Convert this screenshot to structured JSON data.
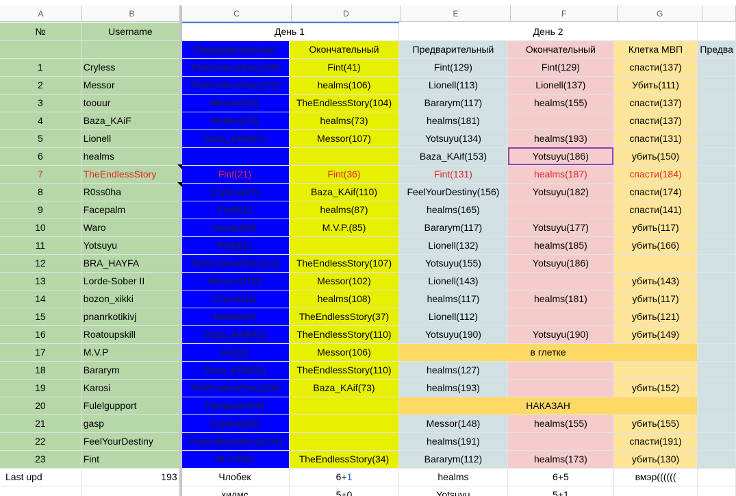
{
  "columns": [
    "A",
    "B",
    "C",
    "D",
    "E",
    "F",
    "G"
  ],
  "headers": {
    "num": "№",
    "username": "Username",
    "day1": "День 1",
    "day2": "День 2",
    "prelim": "Предварительный",
    "final": "Окончательный",
    "mvp": "Клетка МВП",
    "next": "Предва"
  },
  "rows": [
    {
      "n": "1",
      "name": "Cryless",
      "c": "TheEndlessStory(30)",
      "d": "Fint(41)",
      "e": "Fint(129)",
      "f": "Fint(129)",
      "g": "спасти(137)"
    },
    {
      "n": "2",
      "name": "Messor",
      "c": "TheEndlessStory(22)",
      "d": "healms(106)",
      "e": "Lionell(113)",
      "f": "Lionell(137)",
      "g": "Убить(111)"
    },
    {
      "n": "3",
      "name": "toouur",
      "c": "Messor(10)",
      "d": "TheEndlessStory(104)",
      "e": "Bararym(117)",
      "f": "healms(155)",
      "g": "спасти(137)"
    },
    {
      "n": "4",
      "name": "Baza_KAiF",
      "c": "healms(73)",
      "d": "healms(73)",
      "e": "healms(181)",
      "f": "",
      "g": "спасти(137)"
    },
    {
      "n": "5",
      "name": "Lionell",
      "c": "Baza_KAif(87)",
      "d": "Messor(107)",
      "e": "Yotsuyu(134)",
      "f": "healms(193)",
      "g": "спасти(131)"
    },
    {
      "n": "6",
      "name": "healms",
      "c": "",
      "d": "",
      "e": "Baza_KAif(153)",
      "f": "Yotsuyu(186)",
      "g": "убить(150)"
    },
    {
      "n": "7",
      "name": "TheEndlessStory",
      "c": "Fint(21)",
      "d": "Fint(36)",
      "e": "Fint(131)",
      "f": "healms(187)",
      "g": "спасти(184)"
    },
    {
      "n": "8",
      "name": "R0ss0ha",
      "c": "Cryless(97)",
      "d": "Baza_KAif(110)",
      "e": "FeelYourDestiny(156)",
      "f": "Yotsuyu(182)",
      "g": "спасти(174)"
    },
    {
      "n": "9",
      "name": "Facepalm",
      "c": "Fint(61)",
      "d": "healms(87)",
      "e": "healms(165)",
      "f": "",
      "g": "спасти(141)"
    },
    {
      "n": "10",
      "name": "Waro",
      "c": "toouur(50)",
      "d": "M.V.P.(85)",
      "e": "Bararym(117)",
      "f": "Yotsuyu(177)",
      "g": "убить(117)"
    },
    {
      "n": "11",
      "name": "Yotsuyu",
      "c": "Fint(81)",
      "d": "",
      "e": "Lionell(132)",
      "f": "healms(185)",
      "g": "убить(166)"
    },
    {
      "n": "12",
      "name": "BRA_HAYFA",
      "c": "TheEndlessStory(22)",
      "d": "TheEndlessStory(107)",
      "e": "Yotsuyu(155)",
      "f": "Yotsuyu(186)",
      "g": ""
    },
    {
      "n": "13",
      "name": "Lorde-Sober II",
      "c": "Messor(102)",
      "d": "Messor(102)",
      "e": "Lionell(143)",
      "f": "",
      "g": "убить(143)"
    },
    {
      "n": "14",
      "name": "bozon_xikki",
      "c": "Cryless(4)",
      "d": "healms(108)",
      "e": "healms(117)",
      "f": "healms(181)",
      "g": "убить(117)"
    },
    {
      "n": "15",
      "name": "pnanrkotikivj",
      "c": "Messor(3)",
      "d": "TheEndlessStory(37)",
      "e": "Lionell(112)",
      "f": "",
      "g": "убить(121)"
    },
    {
      "n": "16",
      "name": "Roatoupskill",
      "c": "Baza_KAif(43)",
      "d": "TheEndlessStory(110)",
      "e": "Yotsuyu(190)",
      "f": "Yotsuyu(190)",
      "g": "убить(149)"
    },
    {
      "n": "17",
      "name": "M.V.P",
      "c": "Fint(2)",
      "d": "Messor(106)",
      "merged": "в глетке"
    },
    {
      "n": "18",
      "name": "Bararym",
      "c": "Baza_KAif(69)",
      "d": "TheEndlessStory(110)",
      "e": "healms(127)",
      "f": "",
      "g": ""
    },
    {
      "n": "19",
      "name": "Karosi",
      "c": "TheEndlessStory(24)",
      "d": "Baza_KAif(73)",
      "e": "healms(193)",
      "f": "",
      "g": "убить(152)"
    },
    {
      "n": "20",
      "name": "Fulelgupport",
      "c": "Facepalm(64)",
      "d": "",
      "merged": "НАКАЗАН"
    },
    {
      "n": "21",
      "name": "gasp",
      "c": "Cryless(64)",
      "d": "",
      "e": "Messor(148)",
      "f": "healms(155)",
      "g": "убить(155)"
    },
    {
      "n": "22",
      "name": "FeelYourDestiny",
      "c": "TheEndlessStory(104)",
      "d": "",
      "e": "healms(191)",
      "f": "",
      "g": "спасти(191)"
    },
    {
      "n": "23",
      "name": "Fint",
      "c": "M.V.P(2)",
      "d": "TheEndlessStory(34)",
      "e": "Bararym(112)",
      "f": "healms(173)",
      "g": "убить(130)"
    }
  ],
  "footer": {
    "last_upd_label": "Last upd",
    "last_upd_value": "193",
    "r1": {
      "c": "Члобек",
      "d_a": "6+",
      "d_b": "1",
      "e": "healms",
      "f": "6+5",
      "g": "вмэр(((((("
    },
    "r2": {
      "c": "хилмс",
      "d": "5+0",
      "e": "Yotsuyu",
      "f": "5+1"
    }
  }
}
